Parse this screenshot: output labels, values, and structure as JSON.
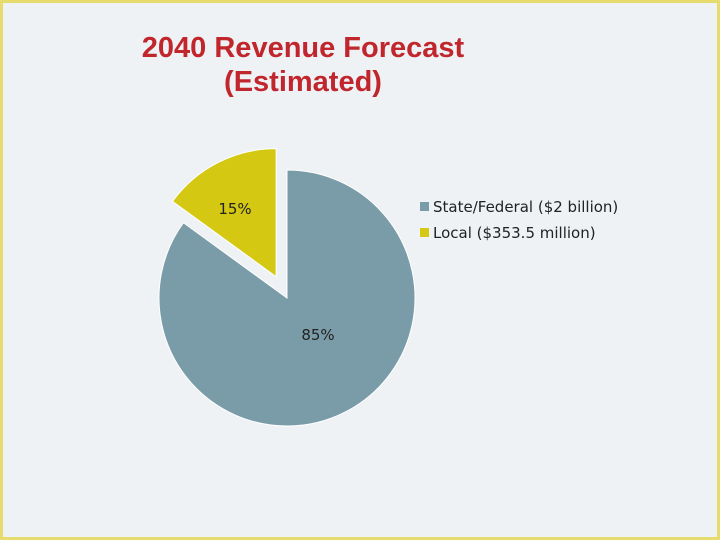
{
  "title": {
    "line1": "2040 Revenue Forecast",
    "line2": "(Estimated)"
  },
  "colors": {
    "title": "#c0262c",
    "border": "#e6dc6e",
    "background": "#eef2f5"
  },
  "chart_data": {
    "type": "pie",
    "title": "2040 Revenue Forecast (Estimated)",
    "categories": [
      "State/Federal ($2 billion)",
      "Local ($353.5 million)"
    ],
    "values": [
      85,
      15
    ],
    "labels": [
      "85%",
      "15%"
    ],
    "colors": [
      "#7a9ca8",
      "#d4c813"
    ],
    "exploded": [
      false,
      true
    ],
    "legend": "right",
    "start_angle_deg": 0,
    "direction": "clockwise"
  }
}
